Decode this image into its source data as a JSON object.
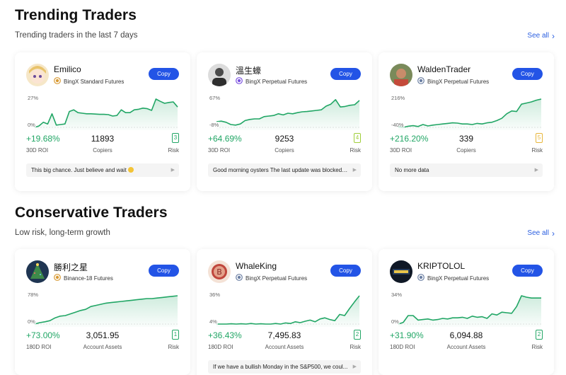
{
  "sections": [
    {
      "title": "Trending Traders",
      "subtitle": "Trending traders in the last 7 days",
      "see_all": "See all",
      "cards": [
        {
          "name": "Emilico",
          "badge": "BingX Standard Futures",
          "badge_color": "#d89a35",
          "copy": "Copy",
          "tick_top": "27%",
          "tick_bottom": "0%",
          "roi": "+19.68%",
          "roi_label": "30D ROI",
          "mid_value": "11893",
          "mid_label": "Copiers",
          "risk": "3",
          "risk_label": "Risk",
          "risk_color": "#21a665",
          "message": "This big chance. Just believe and wait",
          "avatar": "anime",
          "chart": [
            0,
            0.05,
            0.18,
            0.12,
            0.48,
            0.08,
            0.1,
            0.12,
            0.56,
            0.62,
            0.52,
            0.5,
            0.48,
            0.48,
            0.47,
            0.46,
            0.46,
            0.45,
            0.4,
            0.42,
            0.62,
            0.52,
            0.52,
            0.62,
            0.64,
            0.68,
            0.66,
            0.6,
            1.0,
            0.92,
            0.85,
            0.88,
            0.9,
            0.72
          ]
        },
        {
          "name": "溫生蠔",
          "badge": "BingX Perpetual Futures",
          "badge_color": "#7b52e0",
          "copy": "Copy",
          "tick_top": "67%",
          "tick_bottom": "-8%",
          "roi": "+64.69%",
          "roi_label": "30D ROI",
          "mid_value": "9253",
          "mid_label": "Copiers",
          "risk": "4",
          "risk_label": "Risk",
          "risk_color": "#9fce3a",
          "message": "Good morning oysters The last update was blocked ...",
          "avatar": "man",
          "chart": [
            0.2,
            0.22,
            0.18,
            0.1,
            0.08,
            0.12,
            0.24,
            0.28,
            0.3,
            0.3,
            0.38,
            0.4,
            0.42,
            0.48,
            0.44,
            0.5,
            0.48,
            0.52,
            0.55,
            0.56,
            0.58,
            0.6,
            0.62,
            0.75,
            0.82,
            0.98,
            0.72,
            0.74,
            0.78,
            0.8,
            0.95
          ]
        },
        {
          "name": "WaldenTrader",
          "badge": "BingX Perpetual Futures",
          "badge_color": "#6b7fa3",
          "copy": "Copy",
          "tick_top": "216%",
          "tick_bottom": "-40%",
          "roi": "+216.20%",
          "roi_label": "30D ROI",
          "mid_value": "339",
          "mid_label": "Copiers",
          "risk": "5",
          "risk_label": "Risk",
          "risk_color": "#e8b63a",
          "message": "No more data",
          "avatar": "walden",
          "chart": [
            0.02,
            0.0,
            0.04,
            0.06,
            0.03,
            0.1,
            0.05,
            0.08,
            0.1,
            0.12,
            0.14,
            0.16,
            0.15,
            0.12,
            0.12,
            0.1,
            0.14,
            0.12,
            0.16,
            0.18,
            0.24,
            0.32,
            0.48,
            0.58,
            0.56,
            0.82,
            0.86,
            0.9,
            0.96,
            1.0
          ]
        }
      ]
    },
    {
      "title": "Conservative Traders",
      "subtitle": "Low risk, long-term growth",
      "see_all": "See all",
      "cards": [
        {
          "name": "勝利之星",
          "badge": "Binance-18 Futures",
          "badge_color": "#d89a35",
          "copy": "Copy",
          "tick_top": "78%",
          "tick_bottom": "0%",
          "roi": "+73.00%",
          "roi_label": "180D ROI",
          "mid_value": "3,051.95",
          "mid_label": "Account Assets",
          "risk": "1",
          "risk_label": "Risk",
          "risk_color": "#21a665",
          "message": "",
          "avatar": "tree",
          "chart": [
            0,
            0.05,
            0.08,
            0.12,
            0.22,
            0.28,
            0.3,
            0.36,
            0.42,
            0.48,
            0.52,
            0.62,
            0.66,
            0.7,
            0.74,
            0.76,
            0.78,
            0.8,
            0.82,
            0.84,
            0.86,
            0.88,
            0.9,
            0.9,
            0.92,
            0.94,
            0.96,
            0.98,
            1.0
          ]
        },
        {
          "name": "WhaleKing",
          "badge": "BingX Perpetual Futures",
          "badge_color": "#6b7fa3",
          "copy": "Copy",
          "tick_top": "36%",
          "tick_bottom": "4%",
          "roi": "+36.43%",
          "roi_label": "180D ROI",
          "mid_value": "7,495.83",
          "mid_label": "Account Assets",
          "risk": "2",
          "risk_label": "Risk",
          "risk_color": "#21a665",
          "message": "If we have a bullish Monday in the S&P500, we coul...",
          "avatar": "bitcoin",
          "chart": [
            0.0,
            0.0,
            0.0,
            0.01,
            0.0,
            0.01,
            0.0,
            0.02,
            0.0,
            0.01,
            0.0,
            0.0,
            0.02,
            0.0,
            0.04,
            0.02,
            0.08,
            0.05,
            0.1,
            0.14,
            0.08,
            0.18,
            0.22,
            0.16,
            0.12,
            0.34,
            0.3,
            0.55,
            0.78,
            1.0
          ]
        },
        {
          "name": "KRIPTOLOL",
          "badge": "BingX Perpetual Futures",
          "badge_color": "#6b7fa3",
          "copy": "Copy",
          "tick_top": "34%",
          "tick_bottom": "0%",
          "roi": "+31.90%",
          "roi_label": "180D ROI",
          "mid_value": "6,094.88",
          "mid_label": "Account Assets",
          "risk": "2",
          "risk_label": "Risk",
          "risk_color": "#21a665",
          "message": "",
          "avatar": "kripto",
          "chart": [
            0,
            0.06,
            0.3,
            0.3,
            0.14,
            0.16,
            0.18,
            0.14,
            0.16,
            0.2,
            0.18,
            0.22,
            0.22,
            0.24,
            0.2,
            0.28,
            0.24,
            0.26,
            0.2,
            0.36,
            0.32,
            0.42,
            0.4,
            0.38,
            0.62,
            1.0,
            0.95,
            0.92,
            0.92,
            0.92
          ]
        }
      ]
    }
  ]
}
